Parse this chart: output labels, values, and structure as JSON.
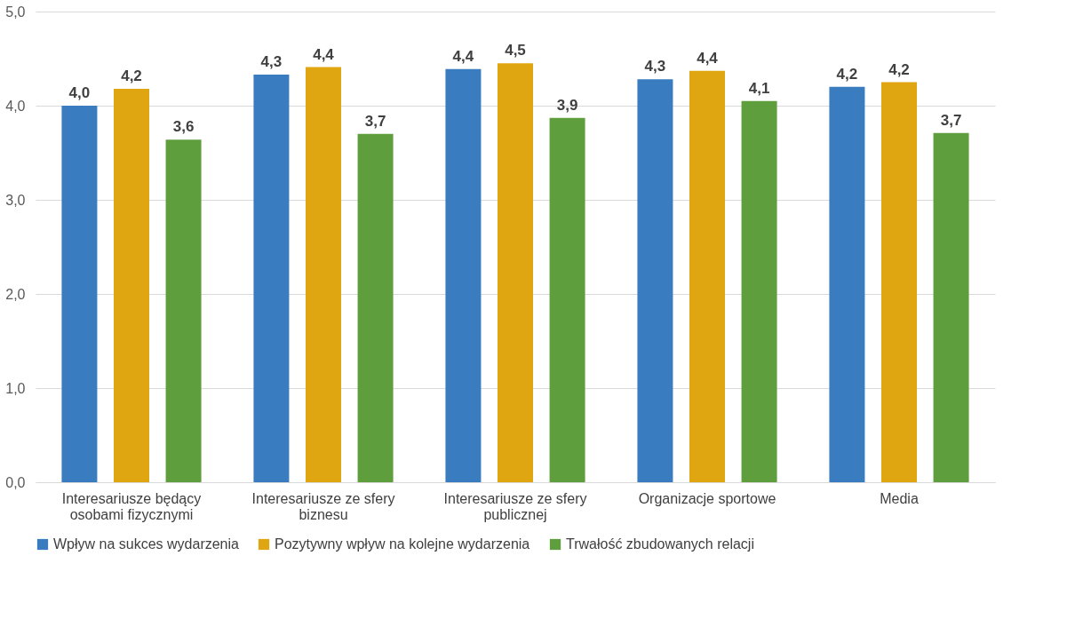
{
  "chart_data": {
    "type": "bar",
    "categories": [
      "Interesariusze będący osobami fizycznymi",
      "Interesariusze ze sfery biznesu",
      "Interesariusze ze sfery publicznej",
      "Organizacje sportowe",
      "Media"
    ],
    "series": [
      {
        "name": "Wpływ na sukces wydarzenia",
        "color": "#3a7cc0",
        "values": [
          4.0,
          4.33,
          4.39,
          4.28,
          4.2
        ],
        "value_labels": [
          "4,0",
          "4,3",
          "4,4",
          "4,3",
          "4,2"
        ]
      },
      {
        "name": "Pozytywny wpływ na kolejne wydarzenia",
        "color": "#e0a612",
        "values": [
          4.18,
          4.41,
          4.45,
          4.37,
          4.25
        ],
        "value_labels": [
          "4,2",
          "4,4",
          "4,5",
          "4,4",
          "4,2"
        ]
      },
      {
        "name": "Trwałość zbudowanych relacji",
        "color": "#5f9e3c",
        "values": [
          3.64,
          3.7,
          3.87,
          4.05,
          3.71
        ],
        "value_labels": [
          "3,6",
          "3,7",
          "3,9",
          "4,1",
          "3,7"
        ]
      }
    ],
    "ylim": [
      0,
      5
    ],
    "yticks": [
      {
        "value": 0,
        "label": "0,0"
      },
      {
        "value": 1,
        "label": "1,0"
      },
      {
        "value": 2,
        "label": "2,0"
      },
      {
        "value": 3,
        "label": "3,0"
      },
      {
        "value": 4,
        "label": "4,0"
      },
      {
        "value": 5,
        "label": "5,0"
      }
    ],
    "grid": "y",
    "legend": "bottom"
  }
}
